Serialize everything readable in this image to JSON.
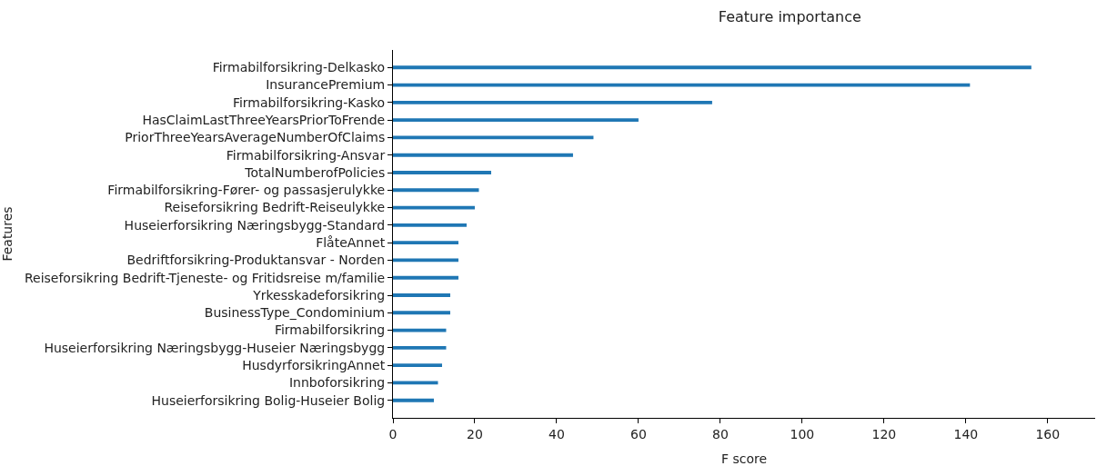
{
  "chart_data": {
    "type": "bar",
    "orientation": "horizontal",
    "title": "Feature importance",
    "xlabel": "F score",
    "ylabel": "Features",
    "categories": [
      "Firmabilforsikring-Delkasko",
      "InsurancePremium",
      "Firmabilforsikring-Kasko",
      "HasClaimLastThreeYearsPriorToFrende",
      "PriorThreeYearsAverageNumberOfClaims",
      "Firmabilforsikring-Ansvar",
      "TotalNumberofPolicies",
      "Firmabilforsikring-Fører- og passasjerulykke",
      "Reiseforsikring Bedrift-Reiseulykke",
      "Huseierforsikring Næringsbygg-Standard",
      "FlåteAnnet",
      "Bedriftforsikring-Produktansvar - Norden",
      "Reiseforsikring Bedrift-Tjeneste- og Fritidsreise m/familie",
      "Yrkesskadeforsikring",
      "BusinessType_Condominium",
      "Firmabilforsikring",
      "Huseierforsikring Næringsbygg-Huseier Næringsbygg",
      "HusdyrforsikringAnnet",
      "Innboforsikring",
      "Huseierforsikring Bolig-Huseier Bolig"
    ],
    "values": [
      156,
      141,
      78,
      60,
      49,
      44,
      24,
      21,
      20,
      18,
      16,
      16,
      16,
      14,
      14,
      13,
      13,
      12,
      11,
      10
    ],
    "color": "#1f77b4",
    "xlim": [
      0,
      171.6
    ],
    "xticks": [
      0,
      20,
      40,
      60,
      80,
      100,
      120,
      140,
      160
    ]
  }
}
